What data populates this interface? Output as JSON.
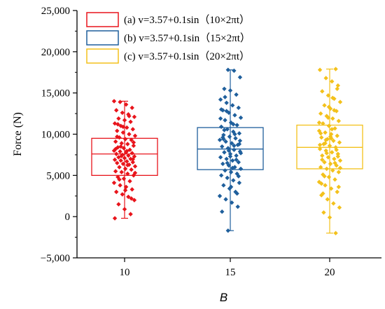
{
  "chart_data": {
    "type": "box",
    "xlabel": "B",
    "ylabel": "Force (N)",
    "ylim": [
      -5000,
      25000
    ],
    "yticks": [
      -5000,
      0,
      5000,
      10000,
      15000,
      20000,
      25000
    ],
    "ytick_labels": [
      "−5,000",
      "0",
      "5,000",
      "10,000",
      "15,000",
      "20,000",
      "25,000"
    ],
    "categories": [
      "10",
      "15",
      "20"
    ],
    "legend_position": "top-left",
    "grid": false,
    "series": [
      {
        "name": "(a) v=3.57+0.1sin（10×2πt）",
        "color": "#e8141b",
        "category": "10",
        "q1": 5000,
        "median": 7600,
        "q3": 9500,
        "whisker_low": -200,
        "whisker_high": 14000,
        "points": [
          14000,
          13900,
          13600,
          13200,
          12900,
          12600,
          12400,
          12100,
          11900,
          11700,
          11500,
          11300,
          11000,
          10800,
          10600,
          10400,
          10200,
          10000,
          9800,
          9600,
          9400,
          9300,
          9100,
          8900,
          8800,
          8600,
          8400,
          8300,
          8100,
          8000,
          7900,
          7800,
          7700,
          7600,
          7500,
          7400,
          7300,
          7200,
          7100,
          7000,
          6900,
          6800,
          6700,
          6600,
          6500,
          6400,
          6300,
          6100,
          6000,
          5800,
          5700,
          5500,
          5400,
          5200,
          5000,
          4800,
          4600,
          4300,
          4100,
          3800,
          3600,
          3300,
          3000,
          2700,
          2400,
          2000,
          1500,
          900,
          300,
          -200,
          8500,
          7950,
          6950,
          9700,
          10900,
          12200,
          5300,
          4500,
          3200,
          2200,
          8200,
          7350,
          6250,
          9000,
          11200
        ]
      },
      {
        "name": "(b) v=3.57+0.1sin（15×2πt）",
        "color": "#1f5f9c",
        "category": "15",
        "q1": 5700,
        "median": 8200,
        "q3": 10800,
        "whisker_low": -1700,
        "whisker_high": 17800,
        "points": [
          17800,
          17700,
          16900,
          15500,
          15300,
          14800,
          14200,
          13800,
          13500,
          13200,
          12900,
          12600,
          12300,
          12000,
          11700,
          11400,
          11100,
          10900,
          10600,
          10300,
          10100,
          9900,
          9700,
          9500,
          9300,
          9100,
          8900,
          8700,
          8500,
          8300,
          8100,
          7900,
          7800,
          7600,
          7400,
          7200,
          7000,
          6800,
          6600,
          6400,
          6200,
          6000,
          5800,
          5600,
          5400,
          5200,
          5000,
          4700,
          4400,
          4100,
          3800,
          3400,
          3000,
          2500,
          2100,
          1700,
          1200,
          600,
          -1700,
          8600,
          9200,
          10500,
          7300,
          6900,
          11900,
          12800,
          5900,
          4900,
          9600,
          8000,
          10000,
          7700,
          14500,
          3600,
          2800,
          13000,
          6500,
          11200,
          8800,
          9400
        ]
      },
      {
        "name": "(c) v=3.57+0.1sin（20×2πt）",
        "color": "#f3c11b",
        "category": "20",
        "q1": 5800,
        "median": 8400,
        "q3": 11100,
        "whisker_low": -2000,
        "whisker_high": 17900,
        "points": [
          17900,
          17800,
          16800,
          16400,
          15900,
          15200,
          14700,
          14300,
          13900,
          13500,
          13100,
          12800,
          12500,
          12200,
          11900,
          11600,
          11300,
          11000,
          10700,
          10400,
          10200,
          10000,
          9800,
          9600,
          9400,
          9200,
          9000,
          8800,
          8600,
          8400,
          8200,
          8000,
          7800,
          7600,
          7400,
          7200,
          7000,
          6800,
          6600,
          6400,
          6200,
          6000,
          5800,
          5600,
          5400,
          5100,
          4800,
          4500,
          4200,
          3800,
          3400,
          3000,
          2600,
          2100,
          1600,
          1100,
          500,
          -100,
          -2000,
          8700,
          9300,
          10600,
          7300,
          6900,
          12000,
          12900,
          5900,
          4900,
          9700,
          8100,
          10100,
          7700,
          14400,
          3600,
          2800,
          13300,
          6500,
          11400,
          8900,
          9500,
          15500,
          4000
        ]
      }
    ]
  }
}
